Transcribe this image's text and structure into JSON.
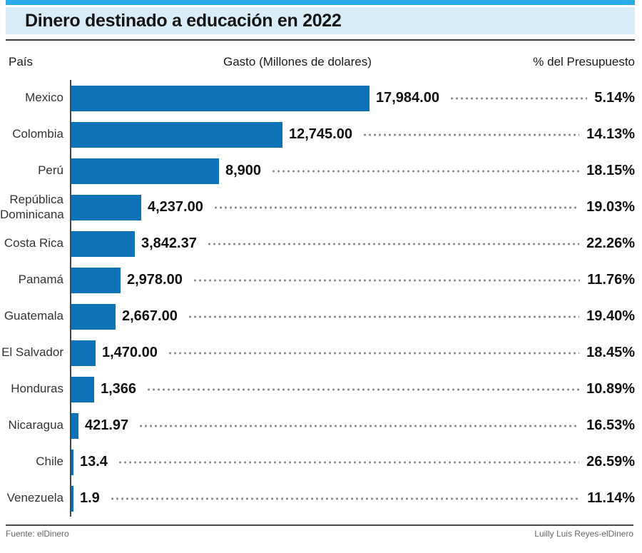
{
  "title": "Dinero destinado a educación en 2022",
  "columns": {
    "country": "País",
    "spending": "Gasto (Millones de dolares)",
    "percent": "% del Presupuesto"
  },
  "footer": {
    "source": "Fuente: elDinero",
    "credit": "Luilly Luis Reyes-elDinero"
  },
  "colors": {
    "accent_strip": "#2aaae4",
    "title_band": "#d9edf9",
    "bar": "#0d72b7",
    "axis": "#474747",
    "leader_dots": "#898989"
  },
  "chart_data": {
    "type": "bar",
    "orientation": "horizontal",
    "title": "Dinero destinado a educación en 2022",
    "xlabel": "Gasto (Millones de dolares)",
    "ylabel": "País",
    "xlim": [
      0,
      17984
    ],
    "grid": false,
    "legend": "none",
    "categories": [
      "Mexico",
      "Colombia",
      "Perú",
      "República Dominicana",
      "Costa Rica",
      "Panamá",
      "Guatemala",
      "El Salvador",
      "Honduras",
      "Nicaragua",
      "Chile",
      "Venezuela"
    ],
    "series": [
      {
        "name": "Gasto (Millones de dolares)",
        "values": [
          17984,
          12745,
          8900,
          4237,
          3842.37,
          2978,
          2667,
          1470,
          1366,
          421.97,
          13.4,
          1.9
        ],
        "labels": [
          "17,984.00",
          "12,745.00",
          "8,900",
          "4,237.00",
          "3,842.37",
          "2,978.00",
          "2,667.00",
          "1,470.00",
          "1,366",
          "421.97",
          "13.4",
          "1.9"
        ]
      },
      {
        "name": "% del Presupuesto",
        "values": [
          5.14,
          14.13,
          18.15,
          19.03,
          22.26,
          11.76,
          19.4,
          18.45,
          10.89,
          16.53,
          26.59,
          11.14
        ],
        "labels": [
          "5.14%",
          "14.13%",
          "18.15%",
          "19.03%",
          "22.26%",
          "11.76%",
          "19.40%",
          "18.45%",
          "10.89%",
          "16.53%",
          "26.59%",
          "11.14%"
        ]
      }
    ]
  }
}
